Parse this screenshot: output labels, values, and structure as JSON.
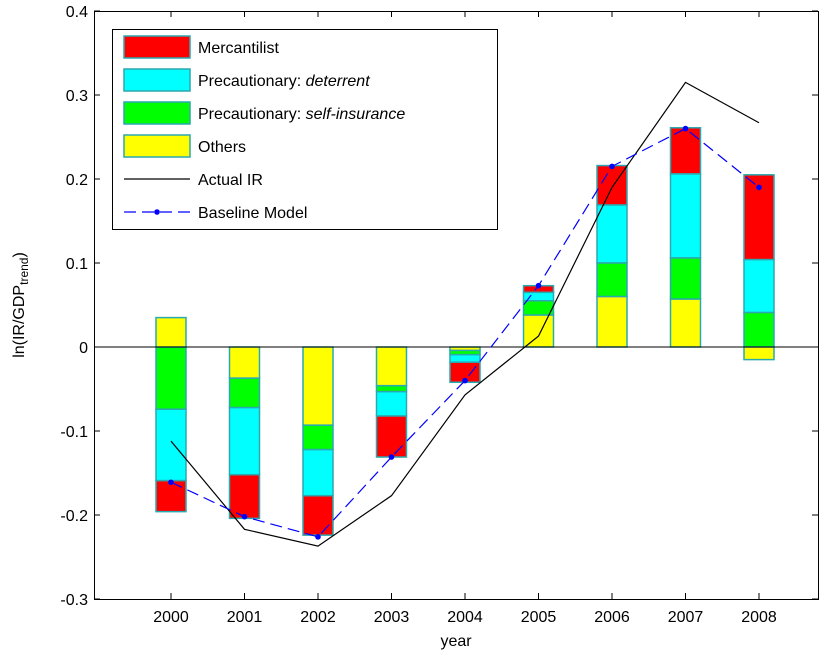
{
  "chart_data": {
    "type": "bar",
    "stacked": true,
    "categories": [
      "2000",
      "2001",
      "2002",
      "2003",
      "2004",
      "2005",
      "2006",
      "2007",
      "2008"
    ],
    "xlabel": "year",
    "ylabel_main": "ln(IR/GDP",
    "ylabel_sub": "trend",
    "ylabel_close": ")",
    "ylim": [
      -0.3,
      0.4
    ],
    "yticks": [
      "-0.3",
      "-0.2",
      "-0.1",
      "0",
      "0.1",
      "0.2",
      "0.3",
      "0.4"
    ],
    "grid": false,
    "legend_position": "top-left",
    "series": [
      {
        "name": "Mercantilist",
        "color": "#ff0000",
        "segments": [
          [
            -0.196,
            -0.159
          ],
          [
            -0.204,
            -0.152
          ],
          [
            -0.224,
            -0.177
          ],
          [
            -0.131,
            -0.082
          ],
          [
            -0.042,
            -0.018
          ],
          [
            0.065,
            0.073
          ],
          [
            0.169,
            0.216
          ],
          [
            0.206,
            0.261
          ],
          [
            0.104,
            0.205
          ]
        ]
      },
      {
        "name": "Precautionary: ",
        "name_italic": "deterrent",
        "color": "#00ffff",
        "segments": [
          [
            -0.159,
            -0.074
          ],
          [
            -0.152,
            -0.072
          ],
          [
            -0.177,
            -0.122
          ],
          [
            -0.082,
            -0.053
          ],
          [
            -0.018,
            -0.009
          ],
          [
            0.055,
            0.065
          ],
          [
            0.1,
            0.169
          ],
          [
            0.106,
            0.206
          ],
          [
            0.041,
            0.104
          ]
        ]
      },
      {
        "name": "Precautionary: ",
        "name_italic": "self-insurance",
        "color": "#00ff00",
        "segments": [
          [
            -0.074,
            0.0
          ],
          [
            -0.072,
            -0.037
          ],
          [
            -0.122,
            -0.093
          ],
          [
            -0.053,
            -0.046
          ],
          [
            -0.009,
            -0.004
          ],
          [
            0.038,
            0.055
          ],
          [
            0.06,
            0.1
          ],
          [
            0.057,
            0.106
          ],
          [
            0.0,
            0.041
          ]
        ]
      },
      {
        "name": "Others",
        "color": "#ffff00",
        "segments": [
          [
            0.0,
            0.035
          ],
          [
            -0.037,
            0.0
          ],
          [
            -0.093,
            0.0
          ],
          [
            -0.046,
            0.0
          ],
          [
            -0.004,
            0.0
          ],
          [
            0.0,
            0.038
          ],
          [
            0.0,
            0.06
          ],
          [
            0.0,
            0.057
          ],
          [
            -0.015,
            0.0
          ]
        ]
      }
    ],
    "lines": [
      {
        "name": "Actual IR",
        "color": "#000000",
        "style": "solid",
        "values": [
          -0.112,
          -0.217,
          -0.237,
          -0.177,
          -0.057,
          0.013,
          0.19,
          0.315,
          0.267
        ]
      },
      {
        "name": "Baseline Model",
        "color": "#0000ff",
        "style": "dashed",
        "marker": "dot",
        "values": [
          -0.161,
          -0.202,
          -0.226,
          -0.131,
          -0.04,
          0.073,
          0.215,
          0.26,
          0.19
        ]
      }
    ]
  }
}
